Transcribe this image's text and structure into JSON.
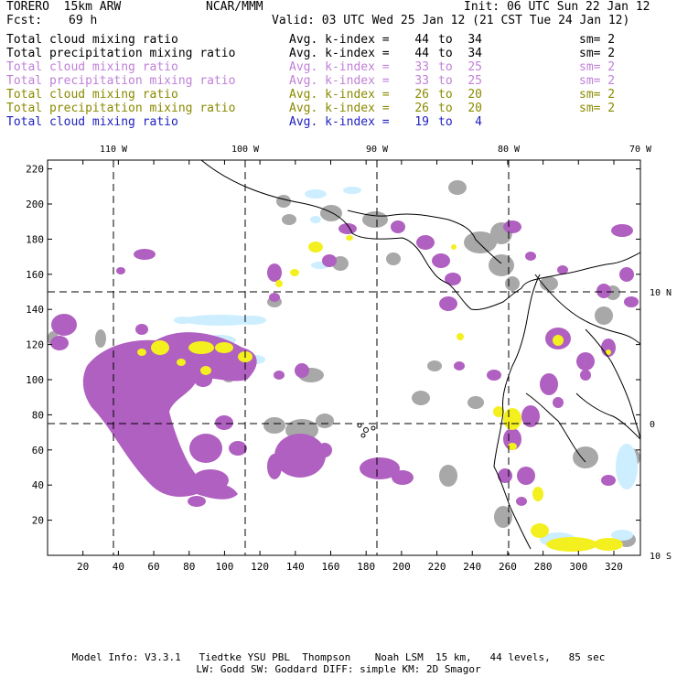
{
  "header": {
    "model": "TORERO  15km ARW",
    "org": "NCAR/MMM",
    "init": "Init: 06 UTC Sun 22 Jan 12",
    "fcst_label": "Fcst:",
    "fcst_value": "69 h",
    "valid": "Valid: 03 UTC Wed 25 Jan 12 (21 CST Tue 24 Jan 12)"
  },
  "legend": [
    {
      "field": "Total cloud mixing ratio",
      "index": "Avg. k-index =",
      "hi": "44",
      "to": "to",
      "lo": "34",
      "sm": "sm= 2",
      "color": "#000000"
    },
    {
      "field": "Total precipitation mixing ratio",
      "index": "Avg. k-index =",
      "hi": "44",
      "to": "to",
      "lo": "34",
      "sm": "sm= 2",
      "color": "#000000"
    },
    {
      "field": "Total cloud mixing ratio",
      "index": "Avg. k-index =",
      "hi": "33",
      "to": "to",
      "lo": "25",
      "sm": "sm= 2",
      "color": "#c080d8"
    },
    {
      "field": "Total precipitation mixing ratio",
      "index": "Avg. k-index =",
      "hi": "33",
      "to": "to",
      "lo": "25",
      "sm": "sm= 2",
      "color": "#c080d8"
    },
    {
      "field": "Total cloud mixing ratio",
      "index": "Avg. k-index =",
      "hi": "26",
      "to": "to",
      "lo": "20",
      "sm": "sm= 2",
      "color": "#8a8a00"
    },
    {
      "field": "Total precipitation mixing ratio",
      "index": "Avg. k-index =",
      "hi": "26",
      "to": "to",
      "lo": "20",
      "sm": "sm= 2",
      "color": "#8a8a00"
    },
    {
      "field": "Total cloud mixing ratio",
      "index": "Avg. k-index =",
      "hi": "19",
      "to": "to",
      "lo": "4",
      "sm": "",
      "color": "#2020c0"
    }
  ],
  "map": {
    "lon_labels": [
      "110 W",
      "100 W",
      "90 W",
      "80 W",
      "70 W"
    ],
    "lat_labels": [
      "10 N",
      "0",
      "10 S"
    ],
    "x_ticks": [
      "20",
      "40",
      "60",
      "80",
      "100",
      "120",
      "140",
      "160",
      "180",
      "200",
      "220",
      "240",
      "260",
      "280",
      "300",
      "320"
    ],
    "y_ticks": [
      "220",
      "200",
      "180",
      "160",
      "140",
      "120",
      "100",
      "80",
      "60",
      "40",
      "20"
    ],
    "x_range": [
      0,
      335
    ],
    "y_range": [
      0,
      225
    ],
    "colors": {
      "gray": "#a8a8a8",
      "purple": "#b060c0",
      "yellow": "#f4f020",
      "lightblue": "#cceeff"
    }
  },
  "footer": {
    "line1": "Model Info: V3.3.1   Tiedtke YSU PBL  Thompson    Noah LSM  15 km,   44 levels,   85 sec",
    "line2": "LW: Godd SW: Goddard DIFF: simple KM: 2D Smagor"
  }
}
